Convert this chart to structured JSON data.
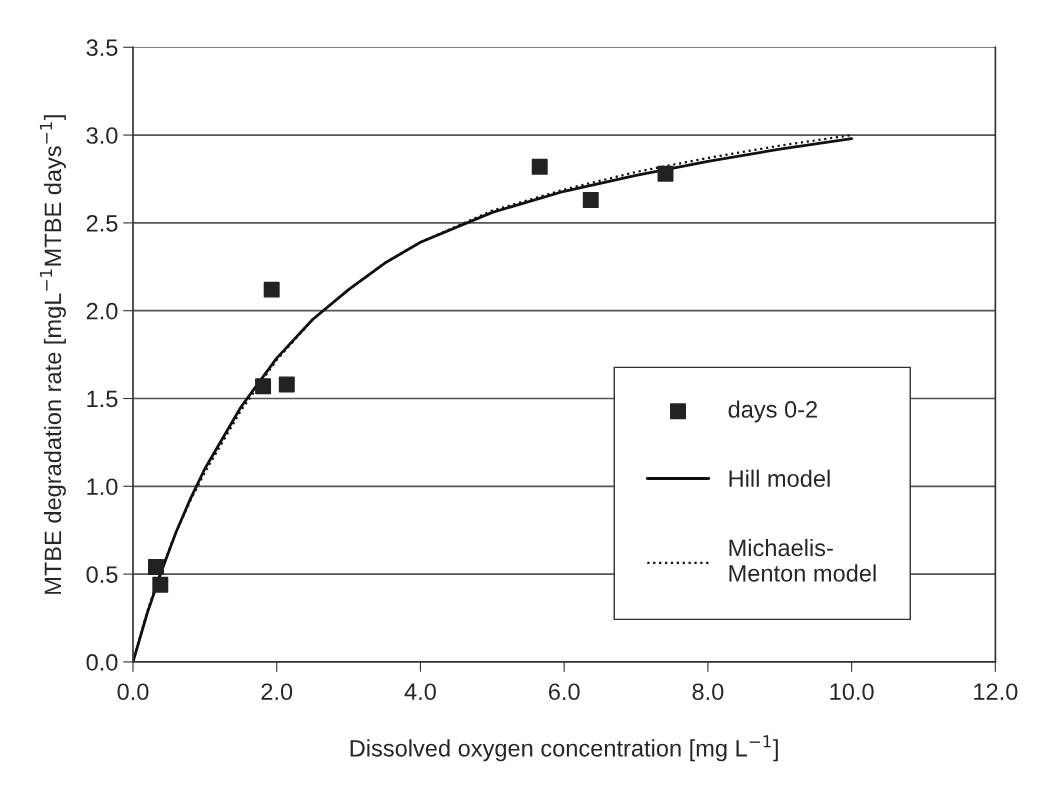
{
  "chart_data": {
    "type": "scatter",
    "xlabel": "Dissolved oxygen concentration [mg L$^{−1}$]",
    "ylabel": "MTBE degradation rate [mgL$^{−1}$MTBE days$^{−1}$]",
    "series": [
      {
        "name": "days 0-2",
        "color": "#222222",
        "marker": "square",
        "x": [
          0.32,
          0.38,
          1.93,
          1.81,
          2.14,
          5.66,
          6.37,
          7.41
        ],
        "values": [
          0.54,
          0.44,
          2.12,
          1.57,
          1.58,
          2.82,
          2.63,
          2.78
        ]
      },
      {
        "name": "Hill model",
        "type": "line",
        "color": "#111111",
        "line_style": "solid",
        "x": [
          0,
          0.2,
          0.4,
          0.6,
          0.8,
          1.0,
          1.5,
          2.0,
          2.5,
          3.0,
          3.5,
          4.0,
          5.0,
          6.0,
          7.0,
          8.0,
          9.0,
          10.0
        ],
        "values": [
          0,
          0.28,
          0.52,
          0.74,
          0.93,
          1.1,
          1.45,
          1.73,
          1.95,
          2.12,
          2.27,
          2.39,
          2.56,
          2.68,
          2.77,
          2.85,
          2.92,
          2.98
        ]
      },
      {
        "name": "Michaelis-\nMenton model",
        "type": "line",
        "color": "#111111",
        "line_style": "dotted",
        "x": [
          0,
          0.2,
          0.4,
          0.6,
          0.8,
          1.0,
          1.5,
          2.0,
          2.5,
          3.0,
          3.5,
          4.0,
          5.0,
          6.0,
          7.0,
          8.0,
          9.0,
          10.0
        ],
        "values": [
          0,
          0.29,
          0.53,
          0.74,
          0.92,
          1.08,
          1.43,
          1.72,
          1.95,
          2.12,
          2.27,
          2.39,
          2.57,
          2.69,
          2.79,
          2.87,
          2.94,
          3.0
        ]
      }
    ],
    "xlim": [
      0,
      12
    ],
    "ylim": [
      0,
      3.5
    ],
    "xticks": [
      {
        "value": 0,
        "label": "0.0"
      },
      {
        "value": 2,
        "label": "2.0"
      },
      {
        "value": 4,
        "label": "4.0"
      },
      {
        "value": 6,
        "label": "6.0"
      },
      {
        "value": 8,
        "label": "8.0"
      },
      {
        "value": 10,
        "label": "10.0"
      },
      {
        "value": 12,
        "label": "12.0"
      }
    ],
    "yticks": [
      {
        "value": 0,
        "label": "0.0"
      },
      {
        "value": 0.5,
        "label": "0.5"
      },
      {
        "value": 1.0,
        "label": "1.0"
      },
      {
        "value": 1.5,
        "label": "1.5"
      },
      {
        "value": 2.0,
        "label": "2.0"
      },
      {
        "value": 2.5,
        "label": "2.5"
      },
      {
        "value": 3.0,
        "label": "3.0"
      },
      {
        "value": 3.5,
        "label": "3.5"
      }
    ],
    "grid": "y",
    "legend": "bottom right"
  }
}
